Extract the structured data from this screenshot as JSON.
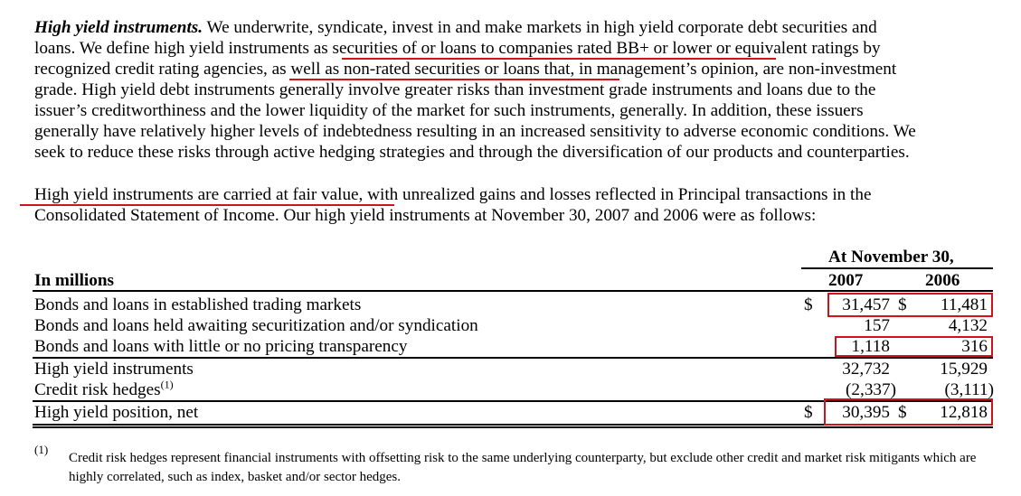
{
  "paragraph1": {
    "lead": "High yield instruments.",
    "lines": [
      " We underwrite, syndicate, invest in and make markets in high yield corporate debt securities and",
      "loans. We define high yield instruments as securities of or loans to companies rated BB+ or lower or equivalent ratings by",
      "recognized credit rating agencies, as well as non-rated securities or loans that, in management’s opinion, are non-investment",
      "grade. High yield debt instruments generally involve greater risks than investment grade instruments and loans due to the",
      "issuer’s creditworthiness and the lower liquidity of the market for such instruments, generally. In addition, these issuers",
      "generally have relatively higher levels of indebtedness resulting in an increased sensitivity to adverse economic conditions. We",
      "seek to reduce these risks through active hedging strategies and through the diversification of our products and counterparties."
    ]
  },
  "paragraph2": {
    "lines": [
      "High yield instruments are carried at fair value, with unrealized gains and losses reflected in Principal transactions in the",
      "Consolidated Statement of Income. Our high yield instruments at November 30, 2007 and 2006 were as follows:"
    ]
  },
  "table": {
    "period_header": "At November 30,",
    "row_header": "In millions",
    "col_2007": "2007",
    "col_2006": "2006",
    "currency": "$",
    "rows": [
      {
        "label": "Bonds and loans in established trading markets",
        "v2007": "31,457",
        "v2006": "11,481",
        "dollar": true
      },
      {
        "label": "Bonds and loans held awaiting securitization and/or syndication",
        "v2007": "157",
        "v2006": "4,132"
      },
      {
        "label": "Bonds and loans with little or no pricing transparency",
        "v2007": "1,118",
        "v2006": "316"
      },
      {
        "label": "High yield instruments",
        "v2007": "32,732",
        "v2006": "15,929"
      },
      {
        "label": "Credit risk hedges",
        "footnote_ref": "(1)",
        "v2007": "(2,337)",
        "v2006": "(3,111)"
      },
      {
        "label": "High yield position, net",
        "v2007": "30,395",
        "v2006": "12,818",
        "dollar": true
      }
    ]
  },
  "footnote": {
    "mark": "(1)",
    "text": "Credit risk hedges represent financial instruments with offsetting risk to the same underlying counterparty, but exclude other credit and market risk mitigants which are highly correlated, such as index, basket and/or sector hedges."
  },
  "annotation_color": "#d0121b"
}
